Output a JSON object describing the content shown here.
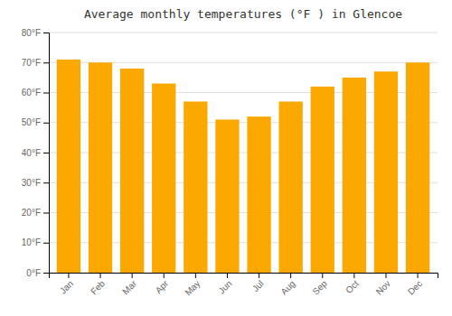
{
  "chart_data": {
    "type": "bar",
    "title": "Average monthly temperatures (°F ) in Glencoe",
    "categories": [
      "Jan",
      "Feb",
      "Mar",
      "Apr",
      "May",
      "Jun",
      "Jul",
      "Aug",
      "Sep",
      "Oct",
      "Nov",
      "Dec"
    ],
    "values": [
      71,
      70,
      68,
      63,
      57,
      51,
      52,
      57,
      62,
      65,
      67,
      70
    ],
    "color": "#FBA900",
    "ylim": [
      0,
      80
    ],
    "yticks": [
      {
        "value": 0,
        "label": "0°F"
      },
      {
        "value": 10,
        "label": "10°F"
      },
      {
        "value": 20,
        "label": "20°F"
      },
      {
        "value": 30,
        "label": "30°F"
      },
      {
        "value": 40,
        "label": "40°F"
      },
      {
        "value": 50,
        "label": "50°F"
      },
      {
        "value": 60,
        "label": "60°F"
      },
      {
        "value": 70,
        "label": "70°F"
      },
      {
        "value": 80,
        "label": "80°F"
      }
    ],
    "grid": true
  }
}
